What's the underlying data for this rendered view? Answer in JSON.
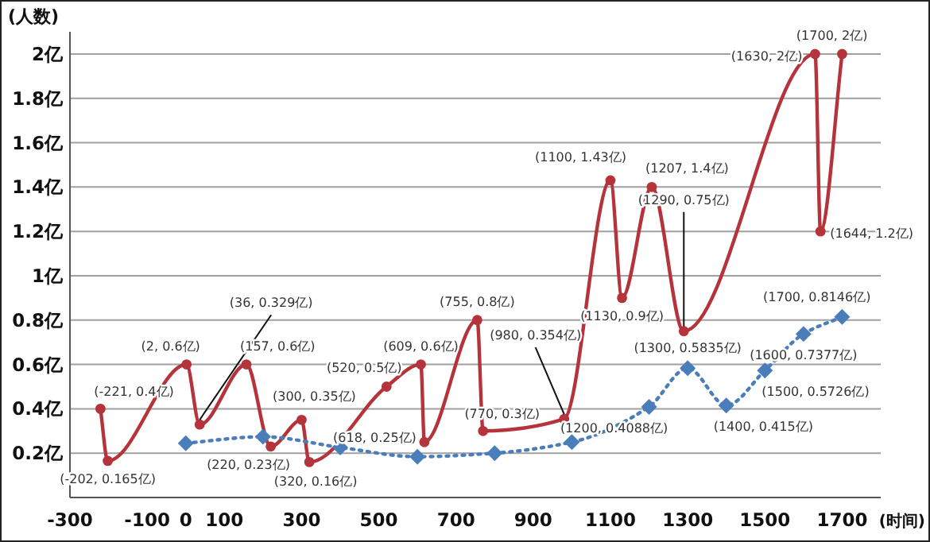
{
  "chart_data": {
    "type": "line",
    "ylabel": "(人数)",
    "xlabel": "(时间)",
    "xlim": [
      -300,
      1800
    ],
    "xticks": [
      -300,
      -100,
      0,
      100,
      300,
      500,
      700,
      900,
      1100,
      1300,
      1500,
      1700
    ],
    "ylim": [
      0,
      2.1
    ],
    "yticks": [
      {
        "value": 0.2,
        "label": "0.2亿"
      },
      {
        "value": 0.4,
        "label": "0.4亿"
      },
      {
        "value": 0.6,
        "label": "0.6亿"
      },
      {
        "value": 0.8,
        "label": "0.8亿"
      },
      {
        "value": 1,
        "label": "1亿"
      },
      {
        "value": 1.2,
        "label": "1.2亿"
      },
      {
        "value": 1.4,
        "label": "1.4亿"
      },
      {
        "value": 1.6,
        "label": "1.6亿"
      },
      {
        "value": 1.8,
        "label": "1.8亿"
      },
      {
        "value": 2,
        "label": "2亿"
      }
    ],
    "grid": "y",
    "series": [
      {
        "color": "#b5333a",
        "marker": "circle",
        "line_style": "solid",
        "x": [
          -221,
          -202,
          2,
          36,
          157,
          220,
          300,
          320,
          520,
          609,
          618,
          755,
          770,
          980,
          1100,
          1130,
          1207,
          1290,
          1630,
          1644,
          1700
        ],
        "values": [
          0.4,
          0.165,
          0.6,
          0.329,
          0.6,
          0.23,
          0.35,
          0.16,
          0.5,
          0.6,
          0.25,
          0.8,
          0.3,
          0.354,
          1.43,
          0.9,
          1.4,
          0.75,
          2,
          1.2,
          2
        ]
      },
      {
        "color": "#4a7ebb",
        "marker": "diamond",
        "line_style": "dotted",
        "x": [
          0,
          200,
          400,
          600,
          800,
          1000,
          1200,
          1300,
          1400,
          1500,
          1600,
          1700
        ],
        "values": [
          0.245,
          0.274,
          0.226,
          0.184,
          0.2,
          0.25,
          0.4088,
          0.5835,
          0.415,
          0.5726,
          0.7377,
          0.8146
        ]
      }
    ],
    "annotations": [
      {
        "text": "(-221, 0.4亿)",
        "x": -221,
        "y": 0.4
      },
      {
        "text": "(-202, 0.165亿)",
        "x": -202,
        "y": 0.165
      },
      {
        "text": "(2, 0.6亿)",
        "x": 2,
        "y": 0.6
      },
      {
        "text": "(36, 0.329亿)",
        "x": 36,
        "y": 0.329
      },
      {
        "text": "(157, 0.6亿)",
        "x": 157,
        "y": 0.6
      },
      {
        "text": "(300, 0.35亿)",
        "x": 300,
        "y": 0.35
      },
      {
        "text": "(220, 0.23亿)",
        "x": 220,
        "y": 0.23
      },
      {
        "text": "(320, 0.16亿)",
        "x": 320,
        "y": 0.16
      },
      {
        "text": "(520, 0.5亿)",
        "x": 520,
        "y": 0.5
      },
      {
        "text": "(609, 0.6亿)",
        "x": 609,
        "y": 0.6
      },
      {
        "text": "(618, 0.25亿)",
        "x": 618,
        "y": 0.25
      },
      {
        "text": "(755, 0.8亿)",
        "x": 755,
        "y": 0.8
      },
      {
        "text": "(770, 0.3亿)",
        "x": 770,
        "y": 0.3
      },
      {
        "text": "(980, 0.354亿)",
        "x": 980,
        "y": 0.354
      },
      {
        "text": "(1100, 1.43亿)",
        "x": 1100,
        "y": 1.43
      },
      {
        "text": "(1130, 0.9亿)",
        "x": 1130,
        "y": 0.9
      },
      {
        "text": "(1207, 1.4亿)",
        "x": 1207,
        "y": 1.4
      },
      {
        "text": "(1290, 0.75亿)",
        "x": 1290,
        "y": 0.75
      },
      {
        "text": "(1630, 2亿)",
        "x": 1630,
        "y": 2
      },
      {
        "text": "(1644, 1.2亿)",
        "x": 1644,
        "y": 1.2
      },
      {
        "text": "(1700, 2亿)",
        "x": 1700,
        "y": 2
      },
      {
        "text": "(1200, 0.4088亿)",
        "x": 1200,
        "y": 0.4088
      },
      {
        "text": "(1300, 0.5835亿)",
        "x": 1300,
        "y": 0.5835
      },
      {
        "text": "(1400, 0.415亿)",
        "x": 1400,
        "y": 0.415
      },
      {
        "text": "(1500, 0.5726亿)",
        "x": 1500,
        "y": 0.5726
      },
      {
        "text": "(1600, 0.7377亿)",
        "x": 1600,
        "y": 0.7377
      },
      {
        "text": "(1700, 0.8146亿)",
        "x": 1700,
        "y": 0.8146
      }
    ]
  }
}
